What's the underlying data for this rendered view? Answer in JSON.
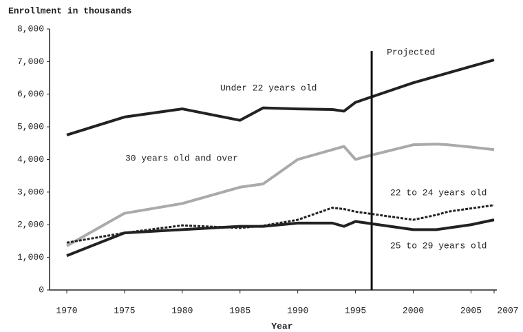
{
  "chart_data": {
    "type": "line",
    "title": "Enrollment in thousands",
    "x_label": "Year",
    "x": [
      1970,
      1975,
      1980,
      1985,
      1987,
      1990,
      1993,
      1994,
      1995,
      1996,
      2000,
      2002,
      2003,
      2005,
      2007
    ],
    "series": [
      {
        "name": "Under 22 years old",
        "color": "#222222",
        "style": "solid",
        "values": [
          4750,
          5300,
          5550,
          5200,
          5580,
          5550,
          5530,
          5480,
          5750,
          5870,
          6350,
          6550,
          6650,
          6850,
          7050
        ]
      },
      {
        "name": "30 years old and over",
        "color": "#aaaaaa",
        "style": "solid",
        "values": [
          1350,
          2350,
          2650,
          3150,
          3250,
          4000,
          4300,
          4400,
          4000,
          4100,
          4450,
          4470,
          4450,
          4380,
          4300
        ]
      },
      {
        "name": "22 to 24 years old",
        "color": "#222222",
        "style": "dotted",
        "values": [
          1450,
          1750,
          1980,
          1900,
          1970,
          2150,
          2520,
          2480,
          2400,
          2350,
          2150,
          2300,
          2400,
          2500,
          2600
        ]
      },
      {
        "name": "25 to 29 years old",
        "color": "#222222",
        "style": "solid",
        "values": [
          1050,
          1750,
          1850,
          1950,
          1950,
          2050,
          2050,
          1950,
          2100,
          2050,
          1850,
          1850,
          1900,
          2000,
          2150
        ]
      }
    ],
    "projection": {
      "label": "Projected",
      "x": 1996.4
    },
    "xlim": [
      1970,
      2007
    ],
    "xticks": [
      1970,
      1975,
      1980,
      1985,
      1990,
      1995,
      2000,
      2005,
      2007
    ],
    "ylim": [
      0,
      8000
    ],
    "yticks": [
      0,
      {
        "value": 1000,
        "label": "1,000"
      },
      {
        "value": 2000,
        "label": "2,000"
      },
      {
        "value": 3000,
        "label": "3,000"
      },
      {
        "value": 4000,
        "label": "4,000"
      },
      {
        "value": 5000,
        "label": "5,000"
      },
      {
        "value": 6000,
        "label": "6,000"
      },
      {
        "value": 7000,
        "label": "7,000"
      },
      {
        "value": 8000,
        "label": "8,000"
      }
    ],
    "grid": false
  }
}
